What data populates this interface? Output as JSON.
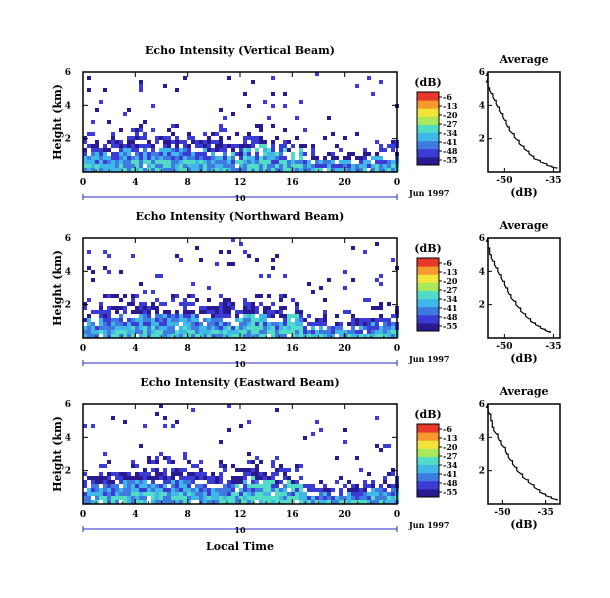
{
  "chart_data": [
    {
      "type": "heatmap",
      "title": "Echo Intensity (Vertical Beam)",
      "ylabel": "Height (km)",
      "x_ticks": [
        "0",
        "4",
        "8",
        "12",
        "16",
        "20",
        "0"
      ],
      "y_ticks": [
        "6",
        "4",
        "2"
      ],
      "xlim": [
        0,
        24
      ],
      "ylim": [
        0,
        6
      ],
      "date_marker": "10",
      "date_label": "Jun 1997",
      "colorbar": {
        "unit": "(dB)",
        "ticks": [
          "-6",
          "-13",
          "-20",
          "-27",
          "-34",
          "-41",
          "-48",
          "-55"
        ]
      },
      "profile": {
        "title": "Average",
        "xlabel": "(dB)",
        "x_ticks": [
          "-50",
          "-35"
        ],
        "y_ticks": [
          "6",
          "4",
          "2"
        ],
        "xlim": [
          -55,
          -33
        ],
        "ylim": [
          0,
          6
        ],
        "points": [
          [
            -56,
            6.0
          ],
          [
            -55.5,
            5.6
          ],
          [
            -55,
            5.2
          ],
          [
            -54.5,
            4.9
          ],
          [
            -53.5,
            4.5
          ],
          [
            -52.5,
            4.1
          ],
          [
            -51.5,
            3.7
          ],
          [
            -50.5,
            3.3
          ],
          [
            -49.5,
            2.9
          ],
          [
            -48.5,
            2.5
          ],
          [
            -47,
            2.1
          ],
          [
            -45.5,
            1.7
          ],
          [
            -44,
            1.4
          ],
          [
            -42.5,
            1.1
          ],
          [
            -41,
            0.8
          ],
          [
            -39,
            0.6
          ],
          [
            -37,
            0.4
          ],
          [
            -35.5,
            0.3
          ],
          [
            -34,
            0.2
          ]
        ]
      }
    },
    {
      "type": "heatmap",
      "title": "Echo Intensity (Northward Beam)",
      "ylabel": "Height (km)",
      "x_ticks": [
        "0",
        "4",
        "8",
        "12",
        "16",
        "20",
        "0"
      ],
      "y_ticks": [
        "6",
        "4",
        "2"
      ],
      "xlim": [
        0,
        24
      ],
      "ylim": [
        0,
        6
      ],
      "date_marker": "10",
      "date_label": "Jun 1997",
      "colorbar": {
        "unit": "(dB)",
        "ticks": [
          "-6",
          "-13",
          "-20",
          "-27",
          "-34",
          "-41",
          "-48",
          "-55"
        ]
      },
      "profile": {
        "title": "Average",
        "xlabel": "(dB)",
        "x_ticks": [
          "-50",
          "-35"
        ],
        "y_ticks": [
          "6",
          "4",
          "2"
        ],
        "xlim": [
          -55,
          -33
        ],
        "ylim": [
          0,
          6
        ],
        "points": [
          [
            -55.5,
            6.0
          ],
          [
            -55,
            5.6
          ],
          [
            -54.5,
            5.2
          ],
          [
            -54,
            4.8
          ],
          [
            -53,
            4.4
          ],
          [
            -52,
            4.0
          ],
          [
            -51,
            3.6
          ],
          [
            -50,
            3.2
          ],
          [
            -49,
            2.8
          ],
          [
            -48,
            2.4
          ],
          [
            -46.5,
            2.0
          ],
          [
            -45,
            1.6
          ],
          [
            -43.5,
            1.3
          ],
          [
            -42,
            1.0
          ],
          [
            -40.5,
            0.8
          ],
          [
            -39,
            0.6
          ],
          [
            -37.5,
            0.45
          ],
          [
            -36,
            0.3
          ]
        ]
      }
    },
    {
      "type": "heatmap",
      "title": "Echo Intensity (Eastward Beam)",
      "ylabel": "Height (km)",
      "xlabel": "Local Time",
      "x_ticks": [
        "0",
        "4",
        "8",
        "12",
        "16",
        "20",
        "0"
      ],
      "y_ticks": [
        "6",
        "4",
        "2"
      ],
      "xlim": [
        0,
        24
      ],
      "ylim": [
        0,
        6
      ],
      "date_marker": "10",
      "date_label": "Jun 1997",
      "colorbar": {
        "unit": "(dB)",
        "ticks": [
          "-6",
          "-13",
          "-20",
          "-27",
          "-34",
          "-41",
          "-48",
          "-55"
        ]
      },
      "profile": {
        "title": "Average",
        "xlabel": "(dB)",
        "x_ticks": [
          "-50",
          "-35"
        ],
        "y_ticks": [
          "6",
          "4",
          "2"
        ],
        "xlim": [
          -55,
          -30
        ],
        "ylim": [
          0,
          6
        ],
        "points": [
          [
            -55.5,
            6.0
          ],
          [
            -55,
            5.6
          ],
          [
            -54,
            5.2
          ],
          [
            -53.5,
            4.8
          ],
          [
            -53,
            4.4
          ],
          [
            -51.5,
            4.0
          ],
          [
            -50.5,
            3.6
          ],
          [
            -49,
            3.2
          ],
          [
            -48,
            2.8
          ],
          [
            -46.5,
            2.4
          ],
          [
            -45,
            2.0
          ],
          [
            -43,
            1.6
          ],
          [
            -41,
            1.3
          ],
          [
            -39,
            1.0
          ],
          [
            -37,
            0.7
          ],
          [
            -35,
            0.5
          ],
          [
            -33,
            0.35
          ],
          [
            -31,
            0.2
          ]
        ]
      }
    }
  ],
  "colors": {
    "scale": [
      "#2a1a8f",
      "#3b3bd6",
      "#3f7ae0",
      "#3fb7e8",
      "#52dcc5",
      "#a8e85a",
      "#f2e43a",
      "#f49a2e",
      "#e8382a"
    ]
  }
}
